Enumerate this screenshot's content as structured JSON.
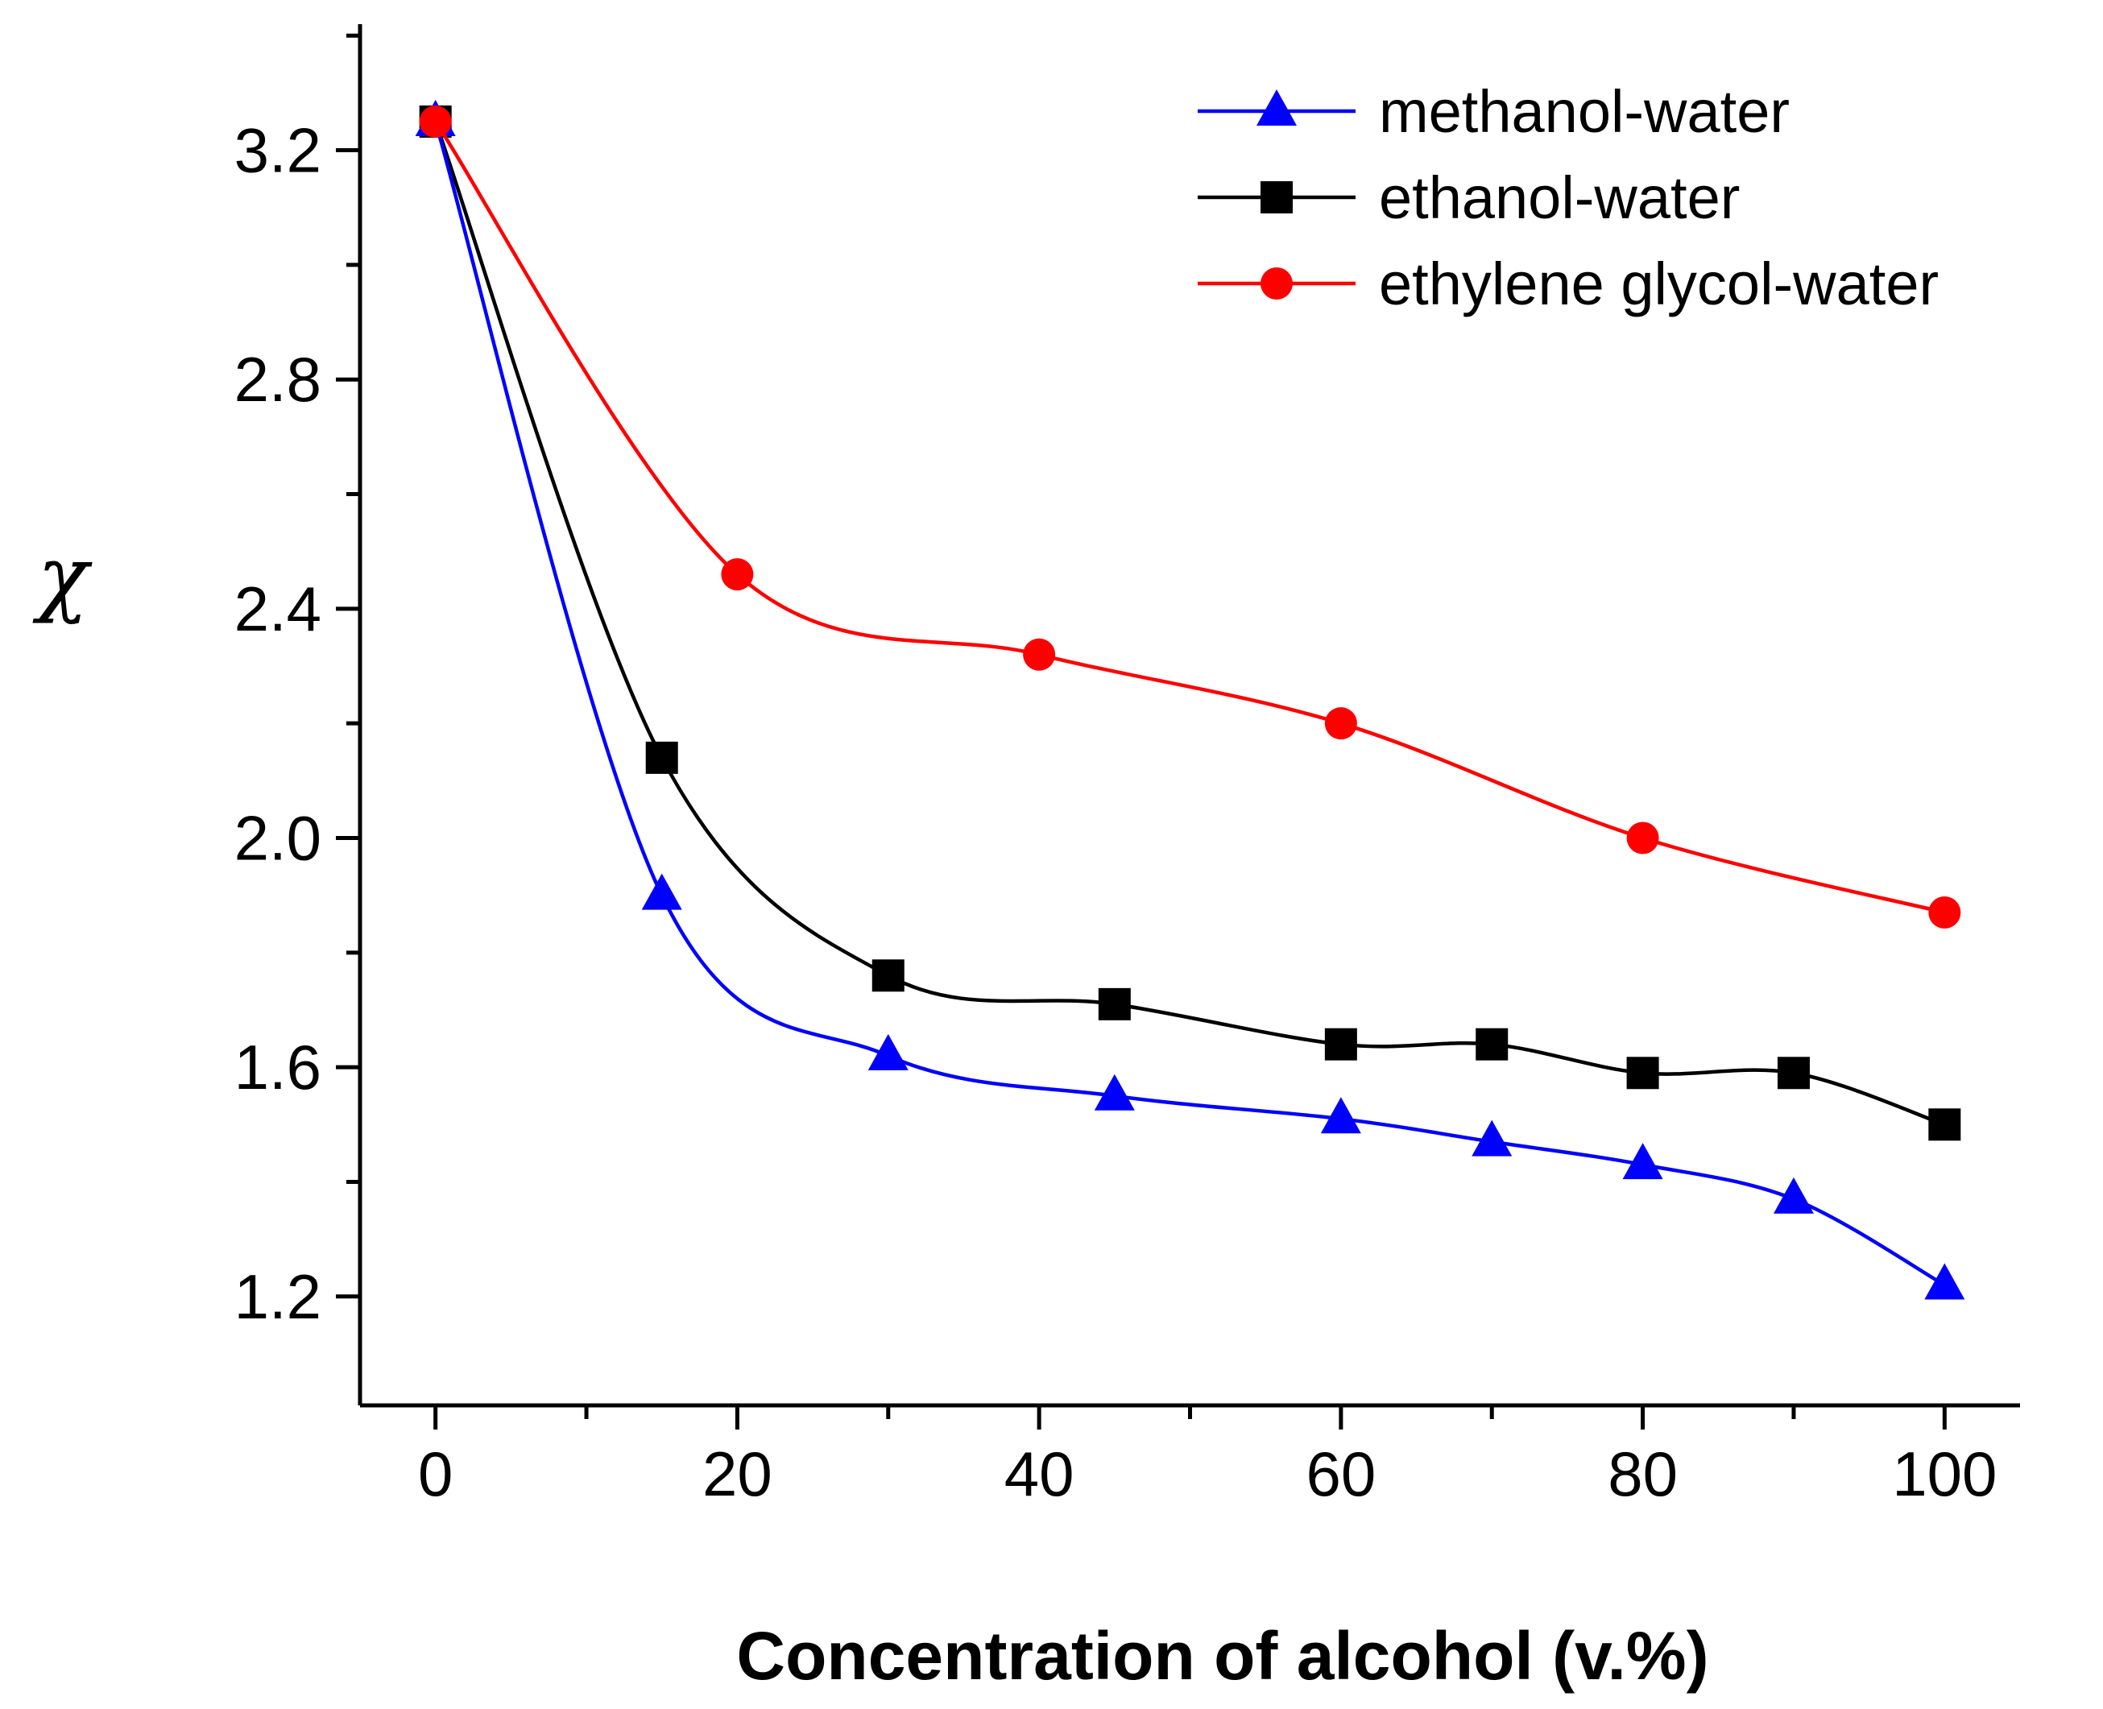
{
  "chart_data": {
    "type": "line",
    "title": "",
    "xlabel": "Concentration of alcohol (v.%)",
    "ylabel": "χ",
    "xlim": [
      -5,
      105
    ],
    "ylim": [
      1.01,
      3.42
    ],
    "xticks": [
      0,
      20,
      40,
      60,
      80,
      100
    ],
    "xtick_labels": [
      "0",
      "20",
      "40",
      "60",
      "80",
      "100"
    ],
    "yticks": [
      1.2,
      1.6,
      2.0,
      2.4,
      2.8,
      3.2
    ],
    "ytick_labels": [
      "1.2",
      "1.6",
      "2.0",
      "2.4",
      "2.8",
      "3.2"
    ],
    "legend_position": "top-right",
    "grid": false,
    "series": [
      {
        "name": "methanol-water",
        "color": "#0000ff",
        "marker": "triangle",
        "x": [
          0,
          15,
          30,
          45,
          60,
          70,
          80,
          90,
          100
        ],
        "y": [
          3.25,
          1.9,
          1.62,
          1.55,
          1.51,
          1.47,
          1.43,
          1.37,
          1.22
        ]
      },
      {
        "name": "ethanol-water",
        "color": "#000000",
        "marker": "square",
        "x": [
          0,
          15,
          30,
          45,
          60,
          70,
          80,
          90,
          100
        ],
        "y": [
          3.25,
          2.14,
          1.76,
          1.71,
          1.64,
          1.64,
          1.59,
          1.59,
          1.5
        ]
      },
      {
        "name": "ethylene glycol-water",
        "color": "#ff0000",
        "marker": "circle",
        "x": [
          0,
          20,
          40,
          60,
          80,
          100
        ],
        "y": [
          3.25,
          2.46,
          2.32,
          2.2,
          2.0,
          1.87
        ]
      }
    ]
  }
}
